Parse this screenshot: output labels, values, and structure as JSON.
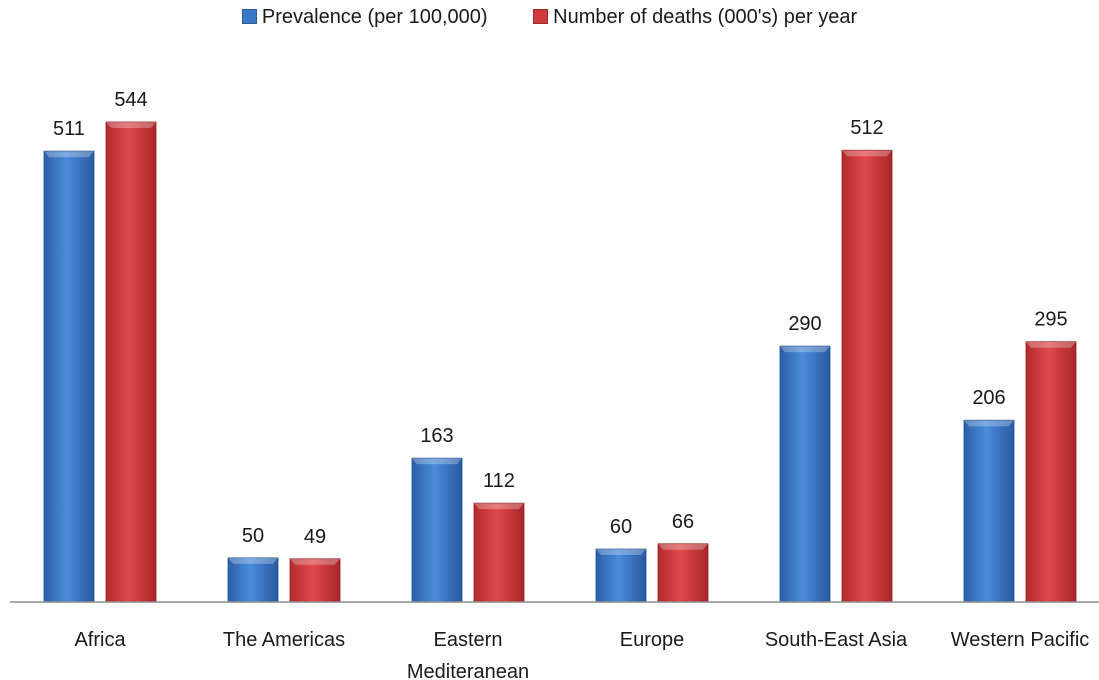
{
  "chart_data": {
    "type": "bar",
    "title": "",
    "xlabel": "",
    "ylabel": "",
    "categories": [
      "Africa",
      "The Americas",
      "Eastern Mediteranean",
      "Europe",
      "South-East Asia",
      "Western Pacific"
    ],
    "category_lines": [
      [
        "Africa"
      ],
      [
        "The Americas"
      ],
      [
        "Eastern",
        "Mediteranean"
      ],
      [
        "Europe"
      ],
      [
        "South-East Asia"
      ],
      [
        "Western Pacific"
      ]
    ],
    "series": [
      {
        "name": "Prevalence (per 100,000)",
        "color": "#3a78c9",
        "values": [
          511,
          50,
          163,
          60,
          290,
          206
        ]
      },
      {
        "name": "Number of deaths (000's) per year",
        "color": "#d23b3d",
        "values": [
          544,
          49,
          112,
          66,
          512,
          295
        ]
      }
    ],
    "ylim": [
      0,
      544
    ],
    "grid": false,
    "legend_position": "top-center",
    "data_labels": true
  }
}
